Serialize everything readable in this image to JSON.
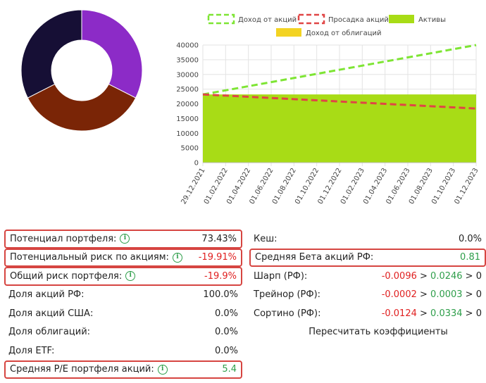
{
  "donut": {
    "segments": [
      {
        "name": "purple",
        "value": 0.325,
        "color": "#8c2bc7"
      },
      {
        "name": "brown",
        "value": 0.35,
        "color": "#7a2506"
      },
      {
        "name": "navy",
        "value": 0.325,
        "color": "#160f35"
      }
    ]
  },
  "chart_data": {
    "type": "line",
    "legend": [
      {
        "name": "Доход от акций",
        "style": "dashed",
        "color": "#7ee534"
      },
      {
        "name": "Просадка акций",
        "style": "dashed",
        "color": "#e04545"
      },
      {
        "name": "Активы",
        "style": "fill",
        "color": "#a8dc16"
      },
      {
        "name": "Доход от облигаций",
        "style": "fill",
        "color": "#f3d322"
      }
    ],
    "x": [
      "29.12.2021",
      "01.02.2022",
      "01.04.2022",
      "01.06.2022",
      "01.08.2022",
      "01.10.2022",
      "01.12.2022",
      "01.02.2023",
      "01.04.2023",
      "01.06.2023",
      "01.08.2023",
      "01.10.2023",
      "01.12.2023"
    ],
    "series": [
      {
        "name": "Доход от акций",
        "values": [
          23200,
          24600,
          26000,
          27400,
          28800,
          30200,
          31600,
          33000,
          34400,
          35800,
          37200,
          38600,
          40000
        ],
        "color": "#7ee534"
      },
      {
        "name": "Просадка акций",
        "values": [
          23200,
          22800,
          22400,
          22000,
          21600,
          21200,
          20800,
          20400,
          20000,
          19600,
          19200,
          18800,
          18400
        ],
        "color": "#e04545"
      },
      {
        "name": "Активы",
        "values": [
          23200,
          23200,
          23200,
          23200,
          23200,
          23200,
          23200,
          23200,
          23200,
          23200,
          23200,
          23200,
          23200
        ],
        "color": "#a8dc16"
      }
    ],
    "yticks": [
      "0",
      "5000",
      "10000",
      "15000",
      "20000",
      "25000",
      "30000",
      "35000",
      "40000"
    ],
    "ylim": [
      0,
      40000
    ],
    "grid": true,
    "legend_position": "top"
  },
  "stats_left": [
    {
      "label": "Потенциал портфеля:",
      "info": true,
      "value": "73.43%",
      "tone": "gray",
      "boxed": true
    },
    {
      "label": "Потенциальный риск по акциям:",
      "info": true,
      "value": "-19.91%",
      "tone": "neg",
      "boxed": true
    },
    {
      "label": "Общий риск портфеля:",
      "info": true,
      "value": "-19.9%",
      "tone": "neg",
      "boxed": true
    },
    {
      "label": "Доля акций РФ:",
      "info": false,
      "value": "100.0%",
      "tone": "gray",
      "boxed": false
    },
    {
      "label": "Доля акций США:",
      "info": false,
      "value": "0.0%",
      "tone": "gray",
      "boxed": false
    },
    {
      "label": "Доля облигаций:",
      "info": false,
      "value": "0.0%",
      "tone": "gray",
      "boxed": false
    },
    {
      "label": "Доля ETF:",
      "info": false,
      "value": "0.0%",
      "tone": "gray",
      "boxed": false
    },
    {
      "label": "Средняя P/E портфеля акций:",
      "info": true,
      "value": "5.4",
      "tone": "pos",
      "boxed": true
    }
  ],
  "stats_right": {
    "cash": {
      "label": "Кеш:",
      "value": "0.0%"
    },
    "beta": {
      "label": "Средняя Бета акций РФ:",
      "value": "0.81"
    },
    "sharpe": {
      "label": "Шарп (РФ):",
      "v1": "-0.0096",
      "sep1": " > ",
      "v2": "0.0246",
      "sep2": " > ",
      "v3": "0"
    },
    "treynor": {
      "label": "Трейнор (РФ):",
      "v1": "-0.0002",
      "sep1": " > ",
      "v2": "0.0003",
      "sep2": " > ",
      "v3": "0"
    },
    "sortino": {
      "label": "Сортино (РФ):",
      "v1": "-0.0124",
      "sep1": " > ",
      "v2": "0.0334",
      "sep2": " > ",
      "v3": "0"
    },
    "recalc_label": "Пересчитать коэффициенты"
  },
  "info_glyph": "i"
}
